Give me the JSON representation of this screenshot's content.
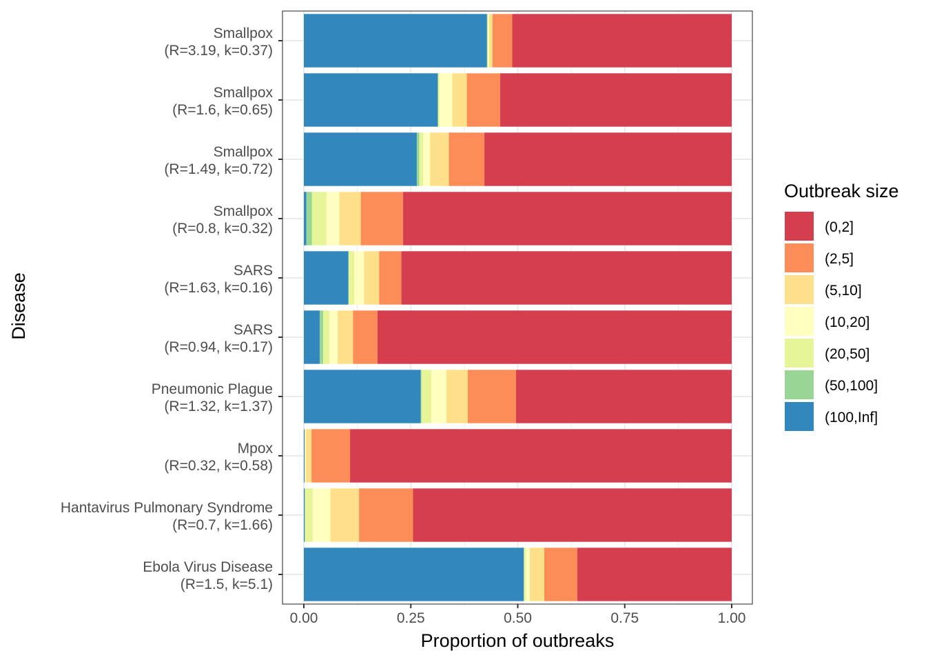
{
  "chart_data": {
    "type": "bar",
    "orientation": "horizontal",
    "stacked": true,
    "xlabel": "Proportion of outbreaks",
    "ylabel": "Disease",
    "xlim": [
      0,
      1
    ],
    "xticks": [
      "0.00",
      "0.25",
      "0.50",
      "0.75",
      "1.00"
    ],
    "grid": true,
    "legend": {
      "title": "Outbreak size",
      "placement": "right"
    },
    "categories": [
      {
        "name": "Smallpox",
        "params": "(R=3.19, k=0.37)"
      },
      {
        "name": "Smallpox",
        "params": "(R=1.6, k=0.65)"
      },
      {
        "name": "Smallpox",
        "params": "(R=1.49, k=0.72)"
      },
      {
        "name": "Smallpox",
        "params": "(R=0.8, k=0.32)"
      },
      {
        "name": "SARS",
        "params": "(R=1.63, k=0.16)"
      },
      {
        "name": "SARS",
        "params": "(R=0.94, k=0.17)"
      },
      {
        "name": "Pneumonic Plague",
        "params": "(R=1.32, k=1.37)"
      },
      {
        "name": "Mpox",
        "params": "(R=0.32, k=0.58)"
      },
      {
        "name": "Hantavirus Pulmonary Syndrome",
        "params": "(R=0.7, k=1.66)"
      },
      {
        "name": "Ebola Virus Disease",
        "params": "(R=1.5, k=5.1)"
      }
    ],
    "stack_order_from_left": [
      "(100,Inf]",
      "(50,100]",
      "(20,50]",
      "(10,20]",
      "(5,10]",
      "(2,5]",
      "(0,2]"
    ],
    "series": [
      {
        "name": "(0,2]",
        "color": "#D53E4F",
        "values": [
          0.513,
          0.541,
          0.578,
          0.768,
          0.772,
          0.828,
          0.504,
          0.892,
          0.745,
          0.361
        ]
      },
      {
        "name": "(2,5]",
        "color": "#FC8D59",
        "values": [
          0.046,
          0.078,
          0.083,
          0.099,
          0.052,
          0.057,
          0.113,
          0.09,
          0.126,
          0.077
        ]
      },
      {
        "name": "(5,10]",
        "color": "#FEE08B",
        "values": [
          0.008,
          0.034,
          0.044,
          0.05,
          0.035,
          0.036,
          0.05,
          0.013,
          0.067,
          0.034
        ]
      },
      {
        "name": "(10,20]",
        "color": "#FFFFBF",
        "values": [
          0.003,
          0.03,
          0.016,
          0.03,
          0.023,
          0.019,
          0.035,
          0.002,
          0.041,
          0.009
        ]
      },
      {
        "name": "(20,50]",
        "color": "#E6F598",
        "values": [
          0.001,
          0.003,
          0.009,
          0.034,
          0.013,
          0.015,
          0.023,
          0.001,
          0.018,
          0.004
        ]
      },
      {
        "name": "(50,100]",
        "color": "#99D594",
        "values": [
          0.001,
          0.001,
          0.006,
          0.013,
          0.001,
          0.008,
          0.002,
          0.0,
          0.001,
          0.001
        ]
      },
      {
        "name": "(100,Inf]",
        "color": "#3288BD",
        "values": [
          0.428,
          0.313,
          0.264,
          0.006,
          0.104,
          0.037,
          0.273,
          0.002,
          0.002,
          0.514
        ]
      }
    ]
  }
}
